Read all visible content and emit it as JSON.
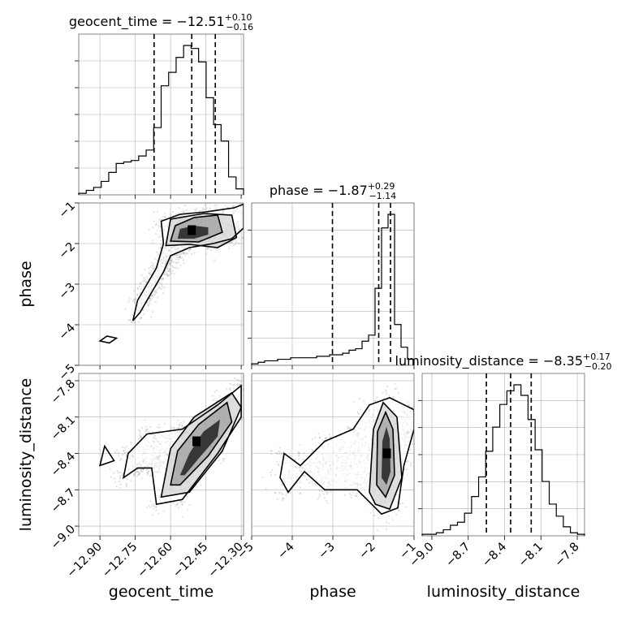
{
  "chart_data": {
    "type": "corner",
    "parameters": [
      {
        "name": "geocent_time",
        "axis_label": "geocent_time",
        "title": {
          "prefix": "geocent_time = ",
          "median": "−12.51",
          "plus": "+0.10",
          "minus": "−0.16"
        },
        "range": [
          -12.99,
          -12.29
        ],
        "ticks": [
          -12.9,
          -12.75,
          -12.6,
          -12.45,
          -12.3
        ],
        "tick_labels": [
          "−12.90",
          "−12.75",
          "−12.60",
          "−12.45",
          "−12.30"
        ],
        "quantiles": [
          -12.67,
          -12.51,
          -12.41
        ],
        "histogram": [
          0.01,
          0.03,
          0.05,
          0.09,
          0.15,
          0.21,
          0.22,
          0.23,
          0.26,
          0.3,
          0.45,
          0.73,
          0.82,
          0.92,
          1.0,
          0.98,
          0.89,
          0.65,
          0.47,
          0.36,
          0.12,
          0.04
        ]
      },
      {
        "name": "phase",
        "axis_label": "phase",
        "title": {
          "prefix": "phase = ",
          "median": "−1.87",
          "plus": "+0.29",
          "minus": "−1.14"
        },
        "range": [
          -5,
          -1
        ],
        "ticks": [
          -5,
          -4,
          -3,
          -2,
          -1
        ],
        "tick_labels": [
          "−5",
          "−4",
          "−3",
          "−2",
          "−1"
        ],
        "quantiles": [
          -3.01,
          -1.87,
          -1.58
        ],
        "histogram": [
          0.01,
          0.02,
          0.03,
          0.03,
          0.04,
          0.04,
          0.05,
          0.05,
          0.05,
          0.05,
          0.06,
          0.06,
          0.07,
          0.07,
          0.08,
          0.1,
          0.11,
          0.16,
          0.2,
          0.51,
          0.91,
          1.0,
          0.27,
          0.12,
          0.04
        ]
      },
      {
        "name": "luminosity_distance",
        "axis_label": "luminosity_distance",
        "title": {
          "prefix": "luminosity_distance = ",
          "median": "−8.35",
          "plus": "+0.17",
          "minus": "−0.20"
        },
        "range": [
          -9.08,
          -7.74
        ],
        "ticks": [
          -9.0,
          -8.7,
          -8.4,
          -8.1,
          -7.8
        ],
        "tick_labels": [
          "−9.0",
          "−8.7",
          "−8.4",
          "−8.1",
          "−7.8"
        ],
        "quantiles": [
          -8.55,
          -8.35,
          -8.18
        ],
        "histogram": [
          0.01,
          0.01,
          0.02,
          0.04,
          0.07,
          0.09,
          0.15,
          0.26,
          0.39,
          0.56,
          0.72,
          0.87,
          0.96,
          1.0,
          0.93,
          0.77,
          0.57,
          0.36,
          0.21,
          0.13,
          0.06,
          0.02,
          0.01
        ]
      }
    ],
    "pairs": [
      {
        "x": "geocent_time",
        "y": "phase",
        "mode": {
          "x": -12.51,
          "y": -1.67
        },
        "contours": [
          [
            [
              -12.57,
              -1.88
            ],
            [
              -12.56,
              -1.64
            ],
            [
              -12.5,
              -1.56
            ],
            [
              -12.44,
              -1.6
            ],
            [
              -12.44,
              -1.78
            ],
            [
              -12.5,
              -1.88
            ]
          ],
          [
            [
              -12.6,
              -1.94
            ],
            [
              -12.58,
              -1.56
            ],
            [
              -12.5,
              -1.36
            ],
            [
              -12.4,
              -1.3
            ],
            [
              -12.38,
              -1.72
            ],
            [
              -12.48,
              -1.96
            ]
          ],
          [
            [
              -12.62,
              -2.05
            ],
            [
              -12.6,
              -1.4
            ],
            [
              -12.46,
              -1.26
            ],
            [
              -12.34,
              -1.3
            ],
            [
              -12.32,
              -1.85
            ],
            [
              -12.4,
              -2.1
            ],
            [
              -12.52,
              -2.02
            ]
          ],
          [
            [
              -12.76,
              -3.9
            ],
            [
              -12.74,
              -3.4
            ],
            [
              -12.7,
              -3.0
            ],
            [
              -12.66,
              -2.6
            ],
            [
              -12.63,
              -2.0
            ],
            [
              -12.64,
              -1.45
            ],
            [
              -12.56,
              -1.28
            ],
            [
              -12.45,
              -1.22
            ],
            [
              -12.33,
              -1.12
            ],
            [
              -12.29,
              -1.03
            ],
            [
              -12.29,
              -1.62
            ],
            [
              -12.34,
              -1.88
            ],
            [
              -12.42,
              -2.0
            ],
            [
              -12.52,
              -2.1
            ],
            [
              -12.6,
              -2.3
            ],
            [
              -12.63,
              -2.7
            ],
            [
              -12.68,
              -3.2
            ],
            [
              -12.73,
              -3.7
            ]
          ],
          [
            [
              -12.9,
              -4.4
            ],
            [
              -12.87,
              -4.28
            ],
            [
              -12.83,
              -4.33
            ],
            [
              -12.86,
              -4.45
            ]
          ]
        ]
      },
      {
        "x": "geocent_time",
        "y": "luminosity_distance",
        "mode": {
          "x": -12.49,
          "y": -8.3
        },
        "contours": [
          [
            [
              -12.56,
              -8.58
            ],
            [
              -12.52,
              -8.4
            ],
            [
              -12.46,
              -8.22
            ],
            [
              -12.39,
              -8.12
            ],
            [
              -12.4,
              -8.26
            ],
            [
              -12.48,
              -8.44
            ],
            [
              -12.54,
              -8.58
            ]
          ],
          [
            [
              -12.6,
              -8.66
            ],
            [
              -12.57,
              -8.38
            ],
            [
              -12.48,
              -8.16
            ],
            [
              -12.36,
              -7.98
            ],
            [
              -12.34,
              -8.14
            ],
            [
              -12.44,
              -8.42
            ],
            [
              -12.56,
              -8.66
            ]
          ],
          [
            [
              -12.64,
              -8.76
            ],
            [
              -12.6,
              -8.36
            ],
            [
              -12.5,
              -8.1
            ],
            [
              -12.34,
              -7.9
            ],
            [
              -12.3,
              -8.02
            ],
            [
              -12.38,
              -8.38
            ],
            [
              -12.52,
              -8.72
            ]
          ],
          [
            [
              -12.8,
              -8.6
            ],
            [
              -12.78,
              -8.4
            ],
            [
              -12.7,
              -8.24
            ],
            [
              -12.55,
              -8.2
            ],
            [
              -12.4,
              -8.0
            ],
            [
              -12.3,
              -7.84
            ],
            [
              -12.3,
              -8.1
            ],
            [
              -12.4,
              -8.4
            ],
            [
              -12.55,
              -8.78
            ],
            [
              -12.66,
              -8.82
            ],
            [
              -12.68,
              -8.52
            ],
            [
              -12.74,
              -8.52
            ]
          ],
          [
            [
              -12.9,
              -8.5
            ],
            [
              -12.88,
              -8.34
            ],
            [
              -12.84,
              -8.46
            ]
          ]
        ]
      },
      {
        "x": "phase",
        "y": "luminosity_distance",
        "mode": {
          "x": -1.67,
          "y": -8.4
        },
        "contours": [
          [
            [
              -1.8,
              -8.6
            ],
            [
              -1.78,
              -8.3
            ],
            [
              -1.68,
              -8.18
            ],
            [
              -1.6,
              -8.28
            ],
            [
              -1.58,
              -8.55
            ],
            [
              -1.68,
              -8.66
            ]
          ],
          [
            [
              -1.92,
              -8.66
            ],
            [
              -1.9,
              -8.22
            ],
            [
              -1.7,
              -8.06
            ],
            [
              -1.52,
              -8.2
            ],
            [
              -1.48,
              -8.58
            ],
            [
              -1.7,
              -8.76
            ]
          ],
          [
            [
              -2.1,
              -8.72
            ],
            [
              -2.0,
              -8.2
            ],
            [
              -1.76,
              -7.98
            ],
            [
              -1.42,
              -8.1
            ],
            [
              -1.3,
              -8.6
            ],
            [
              -1.6,
              -8.86
            ],
            [
              -1.95,
              -8.82
            ]
          ],
          [
            [
              -4.3,
              -8.6
            ],
            [
              -4.2,
              -8.4
            ],
            [
              -3.8,
              -8.5
            ],
            [
              -3.2,
              -8.3
            ],
            [
              -2.5,
              -8.2
            ],
            [
              -2.1,
              -8.0
            ],
            [
              -1.6,
              -7.94
            ],
            [
              -1.0,
              -8.04
            ],
            [
              -1.0,
              -8.2
            ],
            [
              -1.25,
              -8.5
            ],
            [
              -1.4,
              -8.85
            ],
            [
              -1.8,
              -8.9
            ],
            [
              -2.4,
              -8.7
            ],
            [
              -3.2,
              -8.7
            ],
            [
              -3.7,
              -8.55
            ],
            [
              -4.1,
              -8.72
            ]
          ]
        ]
      }
    ]
  }
}
